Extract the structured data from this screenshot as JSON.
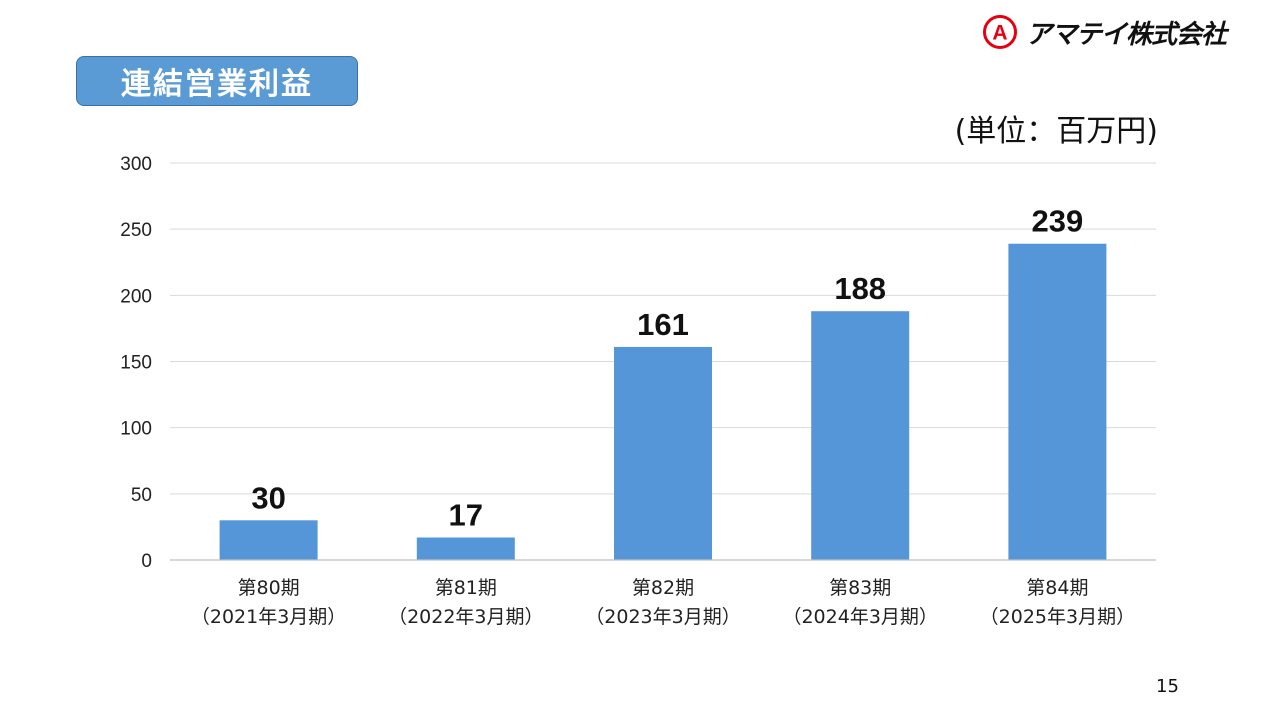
{
  "header": {
    "logo_text": "アマテイ株式会社",
    "logo_mark_letter": "A",
    "title": "連結営業利益",
    "unit": "(単位：百万円)"
  },
  "colors": {
    "bar": "#5496d8",
    "title_bg": "#5b9bd5",
    "logo_red": "#e60012",
    "grid": "#d9d9d9"
  },
  "chart_data": {
    "type": "bar",
    "title": "連結営業利益",
    "ylabel": "",
    "xlabel": "",
    "ylim": [
      0,
      300
    ],
    "yticks": [
      0,
      50,
      100,
      150,
      200,
      250,
      300
    ],
    "grid": true,
    "categories": [
      [
        "第80期",
        "（2021年3月期）"
      ],
      [
        "第81期",
        "（2022年3月期）"
      ],
      [
        "第82期",
        "（2023年3月期）"
      ],
      [
        "第83期",
        "（2024年3月期）"
      ],
      [
        "第84期",
        "（2025年3月期）"
      ]
    ],
    "values": [
      30,
      17,
      161,
      188,
      239
    ],
    "data_labels": [
      "30",
      "17",
      "161",
      "188",
      "239"
    ]
  },
  "footer": {
    "page_number": "15"
  }
}
